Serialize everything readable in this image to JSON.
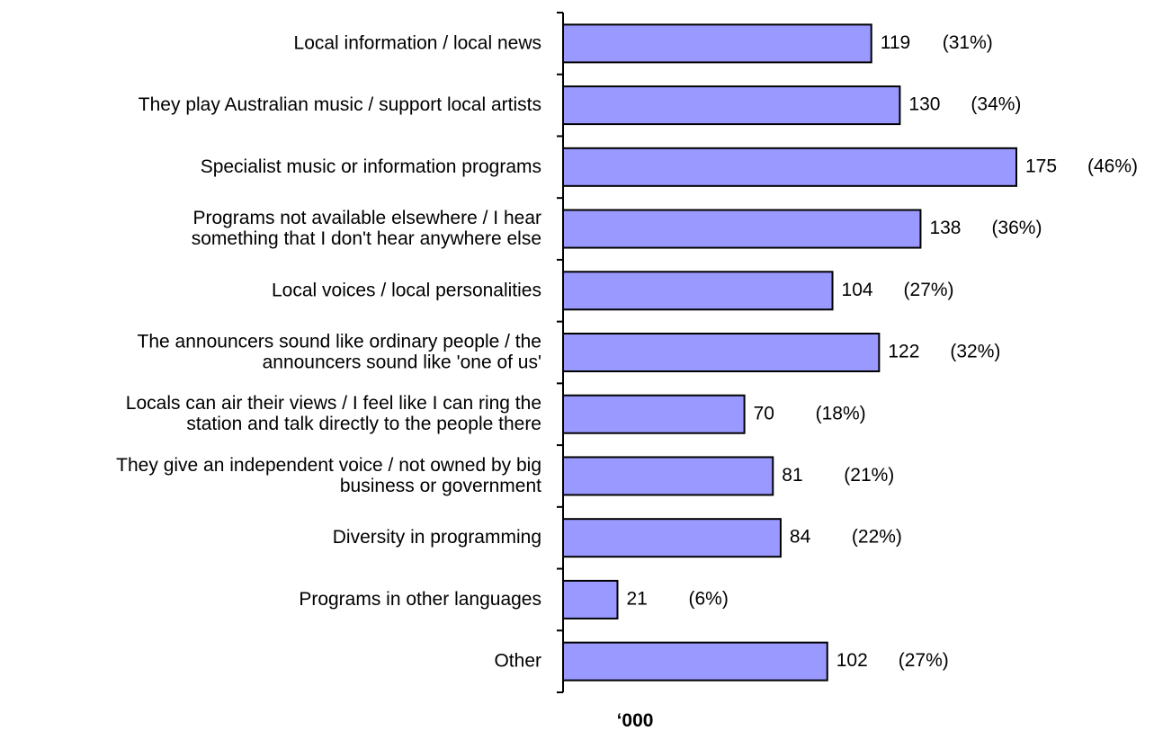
{
  "chart_data": {
    "type": "bar",
    "orientation": "horizontal",
    "categories": [
      "Local information / local news",
      "They play Australian music / support local artists",
      "Specialist music or information programs",
      "Programs not available elsewhere / I hear something that I don't hear anywhere else",
      "Local voices / local personalities",
      "The announcers sound like ordinary people / the announcers sound like 'one of us'",
      "Locals can air their views / I feel like I can ring the station and talk directly to the people there",
      "They give an independent voice / not owned by big business or government",
      "Diversity in programming",
      "Programs in other languages",
      "Other"
    ],
    "category_lines": [
      [
        "Local information / local news"
      ],
      [
        "They play Australian music / support local artists"
      ],
      [
        "Specialist music or information programs"
      ],
      [
        "Programs not available elsewhere / I hear",
        "something that I don't hear anywhere else"
      ],
      [
        "Local voices / local personalities"
      ],
      [
        "The announcers sound like ordinary people / the",
        "announcers sound like 'one of us'"
      ],
      [
        "Locals can air their views / I feel like I can ring the",
        "station and talk directly to the people there"
      ],
      [
        "They give an independent voice / not owned by big",
        "business or government"
      ],
      [
        "Diversity in programming"
      ],
      [
        "Programs in other languages"
      ],
      [
        "Other"
      ]
    ],
    "values": [
      119,
      130,
      175,
      138,
      104,
      122,
      70,
      81,
      84,
      21,
      102
    ],
    "percent_labels": [
      "(31%)",
      "(34%)",
      "(46%)",
      "(36%)",
      "(27%)",
      "(32%)",
      "(18%)",
      "(21%)",
      "(22%)",
      "(6%)",
      "(27%)"
    ],
    "xlabel": "‘000",
    "ylabel": "",
    "xlim": [
      0,
      175
    ],
    "grid": false,
    "legend": "none",
    "bar_color": "#9999ff",
    "bar_border_color": "#000000"
  }
}
